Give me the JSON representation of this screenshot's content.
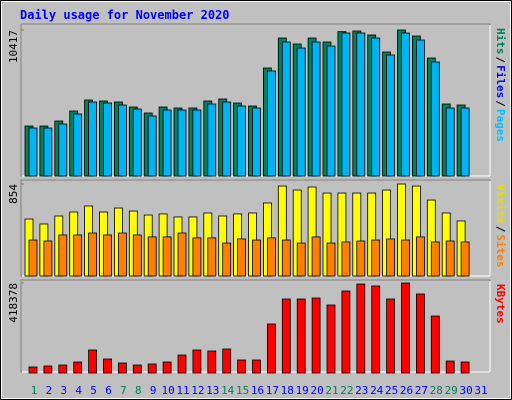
{
  "chart_data": [
    {
      "type": "bar",
      "title": "Daily usage for November 2020",
      "legend": [
        {
          "name": "Hits",
          "color": "#00805c"
        },
        {
          "name": "Files",
          "color": "#0000ff"
        },
        {
          "name": "Pages",
          "color": "#00c0ff"
        }
      ],
      "legend_separator": "/",
      "ylim": [
        0,
        10417
      ],
      "yticks": [
        10417
      ],
      "series": [
        {
          "color": "#00805c",
          "values": [
            3567,
            3567,
            3924,
            4638,
            5423,
            5351,
            5280,
            4923,
            4495,
            4923,
            4852,
            4852,
            5351,
            5494,
            5208,
            4994,
            7706,
            9846,
            9418,
            9846,
            9561,
            10300,
            10346,
            10060,
            8847,
            10417,
            9989,
            8419,
            5137,
            5066,
            null
          ]
        },
        {
          "color": "#00b4f4",
          "values": [
            3425,
            3425,
            3710,
            4424,
            5280,
            5208,
            5066,
            4780,
            4281,
            4709,
            4709,
            4709,
            5137,
            5280,
            4994,
            4852,
            7492,
            9561,
            9133,
            9561,
            9275,
            10203,
            10203,
            9846,
            8633,
            10203,
            9703,
            8134,
            4852,
            4852,
            null
          ]
        }
      ]
    },
    {
      "type": "bar",
      "legend": [
        {
          "name": "Visits",
          "color": "#e0e000"
        },
        {
          "name": "Sites",
          "color": "#ff8000"
        }
      ],
      "legend_separator": "/",
      "ylim": [
        0,
        854
      ],
      "yticks": [
        854
      ],
      "series": [
        {
          "color": "#ffff00",
          "values": [
            529,
            483,
            557,
            594,
            650,
            594,
            631,
            603,
            566,
            576,
            548,
            548,
            585,
            557,
            576,
            585,
            678,
            835,
            798,
            826,
            770,
            770,
            770,
            770,
            798,
            854,
            835,
            705,
            585,
            511,
            null
          ]
        },
        {
          "color": "#ff8000",
          "values": [
            334,
            325,
            381,
            381,
            399,
            381,
            399,
            381,
            363,
            363,
            399,
            354,
            354,
            306,
            344,
            334,
            354,
            334,
            306,
            363,
            306,
            316,
            325,
            334,
            344,
            334,
            363,
            316,
            325,
            316,
            null
          ]
        }
      ]
    },
    {
      "type": "bar",
      "legend": [
        {
          "name": "KBytes",
          "color": "#ff0000"
        }
      ],
      "ylim": [
        0,
        418378
      ],
      "yticks": [
        418378
      ],
      "series": [
        {
          "color": "#ff0000",
          "values": [
            27892,
            32540,
            37189,
            51135,
            106919,
            65081,
            46486,
            37189,
            41838,
            51135,
            83676,
            106919,
            102270,
            111567,
            60433,
            60433,
            227784,
            343999,
            343999,
            348648,
            316108,
            381189,
            413730,
            404432,
            343999,
            418378,
            367243,
            264973,
            55784,
            51135,
            null
          ]
        }
      ],
      "categories": [
        "1",
        "2",
        "3",
        "4",
        "5",
        "6",
        "7",
        "8",
        "9",
        "10",
        "11",
        "12",
        "13",
        "14",
        "15",
        "16",
        "17",
        "18",
        "19",
        "20",
        "21",
        "22",
        "23",
        "24",
        "25",
        "26",
        "27",
        "28",
        "29",
        "30",
        "31"
      ],
      "category_colors": [
        "#00805c",
        "#0000ff",
        "#0000ff",
        "#0000ff",
        "#0000ff",
        "#0000ff",
        "#00805c",
        "#00805c",
        "#0000ff",
        "#0000ff",
        "#0000ff",
        "#0000ff",
        "#0000ff",
        "#00805c",
        "#00805c",
        "#0000ff",
        "#0000ff",
        "#0000ff",
        "#0000ff",
        "#0000ff",
        "#00805c",
        "#00805c",
        "#0000ff",
        "#0000ff",
        "#0000ff",
        "#0000ff",
        "#0000ff",
        "#00805c",
        "#00805c",
        "#0000ff",
        "#0000ff"
      ]
    }
  ]
}
